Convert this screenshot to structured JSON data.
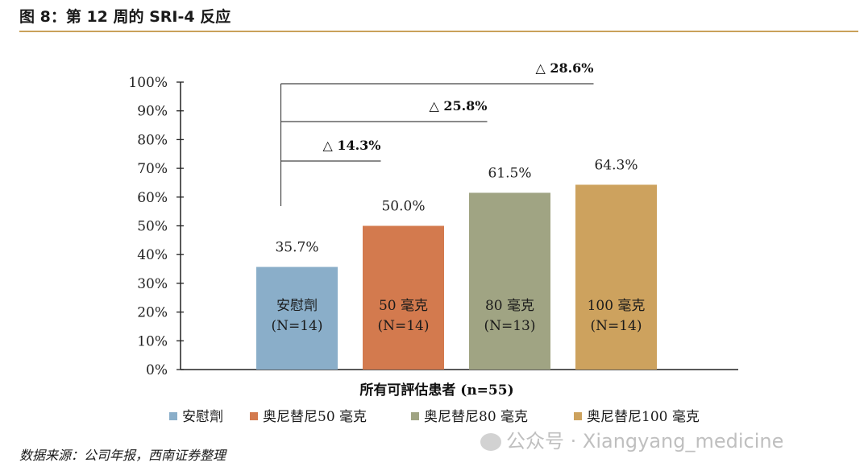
{
  "header": {
    "title": "图 8：第 12 周的 SRI-4 反应"
  },
  "chart_data": {
    "type": "bar",
    "categories": [
      "安慰劑",
      "50 毫克",
      "80 毫克",
      "100 毫克"
    ],
    "category_sublabels": [
      "(N=14)",
      "(N=14)",
      "(N=13)",
      "(N=14)"
    ],
    "values": [
      35.7,
      50.0,
      61.5,
      64.3
    ],
    "data_labels": [
      "35.7%",
      "50.0%",
      "61.5%",
      "64.3%"
    ],
    "colors": [
      "#8aaec9",
      "#d37a4e",
      "#a0a483",
      "#cda25e"
    ],
    "ylim": [
      0,
      100
    ],
    "yticks": [
      "0%",
      "10%",
      "20%",
      "30%",
      "40%",
      "50%",
      "60%",
      "70%",
      "80%",
      "90%",
      "100%"
    ],
    "xlabel": "所有可評估患者 (n=55)",
    "legend": [
      "安慰劑",
      "奥尼替尼50 毫克",
      "奥尼替尼80 毫克",
      "奥尼替尼100 毫克"
    ],
    "legend_position": "bottom",
    "annotations": [
      {
        "text": "△ 14.3%",
        "to_category": 1
      },
      {
        "text": "△ 25.8%",
        "to_category": 2
      },
      {
        "text": "△ 28.6%",
        "to_category": 3
      }
    ]
  },
  "footer": {
    "source": "数据来源：公司年报，西南证券整理",
    "watermark": "公众号 · Xiangyang_medicine"
  }
}
